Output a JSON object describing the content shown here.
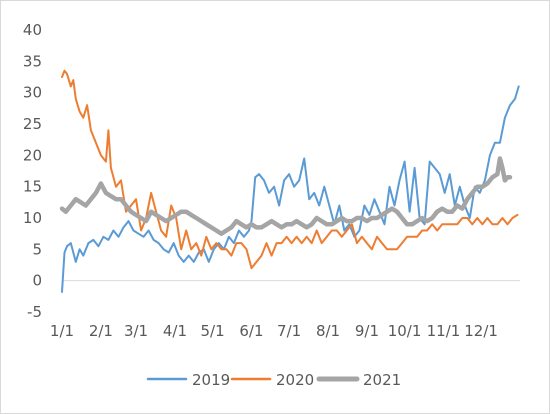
{
  "chart_data": {
    "type": "line",
    "title": "",
    "xlabel": "",
    "ylabel": "",
    "ylim": [
      -5,
      40
    ],
    "yticks": [
      -5,
      0,
      5,
      10,
      15,
      20,
      25,
      30,
      35,
      40
    ],
    "xticks": [
      "1/1",
      "2/1",
      "3/1",
      "4/1",
      "5/1",
      "6/1",
      "7/1",
      "8/1",
      "9/1",
      "10/1",
      "11/1",
      "12/1"
    ],
    "x_unit": "day of year",
    "xlim": [
      1,
      366
    ],
    "grid": false,
    "legend_position": "bottom",
    "colors": {
      "2019": "#5b9bd5",
      "2020": "#ed7d31",
      "2021": "#a5a5a5"
    },
    "series": [
      {
        "name": "2019",
        "x": [
          1,
          3,
          5,
          8,
          12,
          15,
          18,
          22,
          26,
          30,
          34,
          38,
          42,
          46,
          50,
          54,
          58,
          62,
          66,
          70,
          74,
          78,
          82,
          86,
          90,
          94,
          98,
          102,
          106,
          110,
          114,
          118,
          122,
          126,
          130,
          134,
          138,
          142,
          146,
          150,
          152,
          155,
          158,
          162,
          166,
          170,
          174,
          178,
          182,
          186,
          190,
          194,
          198,
          202,
          206,
          210,
          214,
          218,
          222,
          226,
          230,
          234,
          238,
          242,
          246,
          250,
          254,
          258,
          262,
          266,
          270,
          274,
          278,
          282,
          286,
          290,
          294,
          298,
          302,
          306,
          310,
          314,
          318,
          322,
          326,
          330,
          334,
          338,
          342,
          346,
          350,
          354,
          358,
          362,
          365
        ],
        "values": [
          -1.8,
          4.5,
          5.5,
          6,
          3,
          5,
          4,
          6,
          6.5,
          5.5,
          7,
          6.5,
          8,
          7,
          8.5,
          9.5,
          8,
          7.5,
          7,
          8,
          6.5,
          6,
          5,
          4.5,
          6,
          4,
          3,
          4,
          3,
          4.5,
          5,
          3,
          5,
          6,
          5,
          7,
          6,
          8,
          7,
          8,
          9.5,
          16.5,
          17,
          16,
          14,
          15,
          12,
          16,
          17,
          15,
          16,
          19.5,
          13,
          14,
          12,
          15,
          12,
          9,
          12,
          8,
          9,
          7,
          8,
          12,
          10.5,
          13,
          11,
          9,
          15,
          12,
          16,
          19,
          11,
          18,
          10,
          9,
          19,
          18,
          17,
          14,
          17,
          12,
          15,
          12,
          10,
          15,
          14,
          16,
          20,
          22,
          22,
          26,
          28,
          29,
          31
        ]
      },
      {
        "name": "2020",
        "x": [
          1,
          3,
          5,
          8,
          10,
          12,
          15,
          18,
          21,
          24,
          28,
          32,
          36,
          38,
          40,
          44,
          48,
          52,
          56,
          60,
          64,
          68,
          72,
          76,
          80,
          84,
          88,
          92,
          96,
          100,
          104,
          108,
          112,
          116,
          120,
          124,
          128,
          132,
          136,
          140,
          144,
          148,
          152,
          156,
          160,
          164,
          168,
          172,
          176,
          180,
          184,
          188,
          192,
          196,
          200,
          204,
          208,
          212,
          216,
          220,
          224,
          228,
          232,
          236,
          240,
          244,
          248,
          252,
          256,
          260,
          264,
          268,
          272,
          276,
          280,
          284,
          288,
          292,
          296,
          300,
          304,
          308,
          312,
          316,
          320,
          324,
          328,
          332,
          336,
          340,
          344,
          348,
          352,
          356,
          360,
          364
        ],
        "values": [
          32.5,
          33.5,
          33,
          31,
          32,
          29,
          27,
          26,
          28,
          24,
          22,
          20,
          19,
          24,
          18,
          15,
          16,
          11,
          12,
          13,
          8,
          10,
          14,
          11,
          8,
          7,
          12,
          10,
          5,
          8,
          5,
          6,
          4,
          7,
          5,
          6,
          5,
          5,
          4,
          6,
          6,
          5,
          2,
          3,
          4,
          6,
          4,
          6,
          6,
          7,
          6,
          7,
          6,
          7,
          6,
          8,
          6,
          7,
          8,
          8,
          7,
          8,
          9,
          6,
          7,
          6,
          5,
          7,
          6,
          5,
          5,
          5,
          6,
          7,
          7,
          7,
          8,
          8,
          9,
          8,
          9,
          9,
          9,
          9,
          10,
          10,
          9,
          10,
          9,
          10,
          9,
          9,
          10,
          9,
          10,
          10.5
        ]
      },
      {
        "name": "2021",
        "x": [
          1,
          4,
          8,
          12,
          16,
          20,
          24,
          28,
          32,
          36,
          40,
          44,
          48,
          52,
          56,
          60,
          64,
          68,
          72,
          76,
          80,
          84,
          88,
          92,
          96,
          100,
          104,
          108,
          112,
          116,
          120,
          124,
          128,
          132,
          136,
          140,
          144,
          148,
          152,
          156,
          160,
          164,
          168,
          172,
          176,
          180,
          184,
          188,
          192,
          196,
          200,
          204,
          208,
          212,
          216,
          220,
          224,
          228,
          232,
          236,
          240,
          244,
          248,
          252,
          256,
          260,
          264,
          268,
          272,
          276,
          280,
          284,
          288,
          292,
          296,
          300,
          304,
          308,
          312,
          316,
          320,
          324,
          328,
          332,
          336,
          340,
          344,
          348,
          350,
          352,
          354,
          356,
          358
        ],
        "values": [
          11.5,
          11,
          12,
          13,
          12.5,
          12,
          13,
          14,
          15.5,
          14,
          13.5,
          13,
          13,
          12,
          11,
          10.5,
          10,
          9.5,
          11,
          10.5,
          10,
          9.5,
          10,
          10.5,
          11,
          11,
          10.5,
          10,
          9.5,
          9,
          8.5,
          8,
          7.5,
          8,
          8.5,
          9.5,
          9,
          8.5,
          9,
          8.5,
          8.5,
          9,
          9.5,
          9,
          8.5,
          9,
          9,
          9.5,
          9,
          8.5,
          9,
          10,
          9.5,
          9,
          9,
          9.5,
          10,
          9.5,
          9.5,
          10,
          10,
          9.5,
          10,
          10,
          10.5,
          11,
          11.5,
          11,
          10,
          9,
          9,
          9.5,
          10,
          9.5,
          10,
          11,
          11.5,
          11,
          11,
          12,
          11.5,
          13,
          14,
          15,
          15,
          15.5,
          16.5,
          17,
          19.5,
          18,
          16,
          16.5,
          16.5
        ]
      }
    ]
  }
}
